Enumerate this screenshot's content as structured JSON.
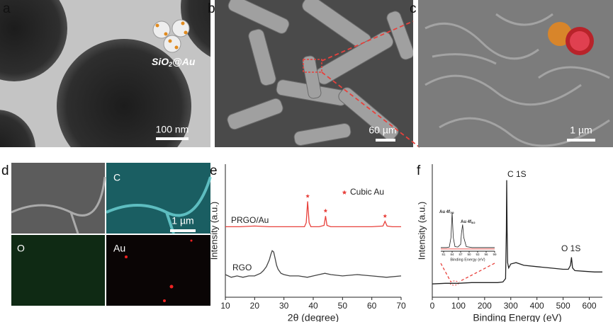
{
  "panels": {
    "a": {
      "label": "a",
      "inset_text": {
        "main": "SiO",
        "sub": "2",
        "rest": "@Au"
      },
      "scale_bar": "100 nm"
    },
    "b": {
      "label": "b",
      "scale_bar": "60 µm"
    },
    "c": {
      "label": "c",
      "scale_bar": "1 µm"
    },
    "d": {
      "label": "d",
      "maps": [
        "C",
        "O",
        "Au"
      ],
      "scale_bar": "1 µm"
    },
    "e": {
      "label": "e"
    },
    "f": {
      "label": "f"
    }
  },
  "chart_data": [
    {
      "type": "line",
      "xlabel": "2θ (degree)",
      "ylabel": "Intensity (a.u.)",
      "legend": "Cubic Au",
      "xlim": [
        10,
        70
      ],
      "xticks": [
        10,
        20,
        30,
        40,
        50,
        60,
        70
      ],
      "ylim": [
        0,
        10
      ],
      "marker_x": [
        38.1,
        44.2,
        64.5
      ],
      "marker_y": [
        7.6,
        6.5,
        6.1
      ],
      "series": [
        {
          "name": "PRGO/Au",
          "color": "#e8413c",
          "x": [
            10,
            15,
            20,
            25,
            30,
            35,
            37,
            37.6,
            38.1,
            38.6,
            39.2,
            42,
            43.7,
            44.2,
            44.7,
            46,
            50,
            55,
            60,
            63.8,
            64.5,
            65.2,
            67,
            70
          ],
          "values": [
            5.3,
            5.3,
            5.35,
            5.3,
            5.3,
            5.3,
            5.3,
            5.6,
            7.2,
            5.6,
            5.3,
            5.3,
            5.4,
            6.1,
            5.4,
            5.3,
            5.3,
            5.3,
            5.3,
            5.35,
            5.7,
            5.35,
            5.3,
            5.3
          ]
        },
        {
          "name": "RGO",
          "color": "#444444",
          "x": [
            10,
            12,
            14,
            16,
            18,
            20,
            22,
            23,
            24,
            25,
            25.5,
            26,
            26.5,
            27,
            27.5,
            28,
            29,
            30,
            32,
            35,
            38,
            40,
            42,
            44,
            46,
            50,
            55,
            60,
            65,
            70
          ],
          "values": [
            1.7,
            1.5,
            1.6,
            1.5,
            1.6,
            1.6,
            1.8,
            2.0,
            2.3,
            2.8,
            3.2,
            3.5,
            3.4,
            2.9,
            2.4,
            2.1,
            1.8,
            1.7,
            1.6,
            1.6,
            1.5,
            1.6,
            1.7,
            1.8,
            1.7,
            1.6,
            1.7,
            1.6,
            1.5,
            1.6
          ]
        }
      ]
    },
    {
      "type": "line",
      "xlabel": "Binding Energy (eV)",
      "ylabel": "Intensity (a.u.)",
      "xlim": [
        0,
        650
      ],
      "xticks": [
        0,
        100,
        200,
        300,
        400,
        500,
        600
      ],
      "ylim": [
        0,
        10
      ],
      "peak_labels": [
        "C 1S",
        "O 1S"
      ],
      "series": [
        {
          "color": "#222222",
          "x": [
            0,
            50,
            100,
            150,
            200,
            250,
            270,
            280,
            283,
            284.5,
            286,
            288,
            292,
            300,
            320,
            350,
            400,
            450,
            500,
            520,
            528,
            532,
            536,
            545,
            580,
            620,
            650
          ],
          "values": [
            1.0,
            1.05,
            1.05,
            1.1,
            1.1,
            1.1,
            1.15,
            1.4,
            5.0,
            8.8,
            5.0,
            2.6,
            2.2,
            2.5,
            2.6,
            2.4,
            2.3,
            2.2,
            2.1,
            2.1,
            2.4,
            3.0,
            2.2,
            2.0,
            1.95,
            1.9,
            1.9
          ]
        }
      ]
    },
    {
      "type": "line",
      "xlabel": "Binding Energy (eV)",
      "xlim": [
        80,
        99
      ],
      "xticks": [
        81,
        84,
        87,
        90,
        93,
        96,
        99
      ],
      "ylim": [
        0,
        10
      ],
      "peak_labels": [
        {
          "main": "Au 4f",
          "sub": "7/2"
        },
        {
          "main": "Au 4f",
          "sub": "5/2"
        }
      ],
      "series": [
        {
          "color": "#222222",
          "x": [
            80,
            82,
            83,
            83.6,
            84,
            84.4,
            85,
            86,
            87,
            87.3,
            87.7,
            88.1,
            89,
            91,
            94,
            97,
            99
          ],
          "values": [
            0.8,
            0.8,
            0.9,
            3,
            8.5,
            3,
            1.0,
            0.9,
            1.5,
            4,
            5.8,
            3,
            1.0,
            0.8,
            0.8,
            0.8,
            0.8
          ]
        },
        {
          "color": "#e8413c",
          "x": [
            80,
            99
          ],
          "values": [
            0.5,
            0.5
          ]
        }
      ]
    }
  ]
}
